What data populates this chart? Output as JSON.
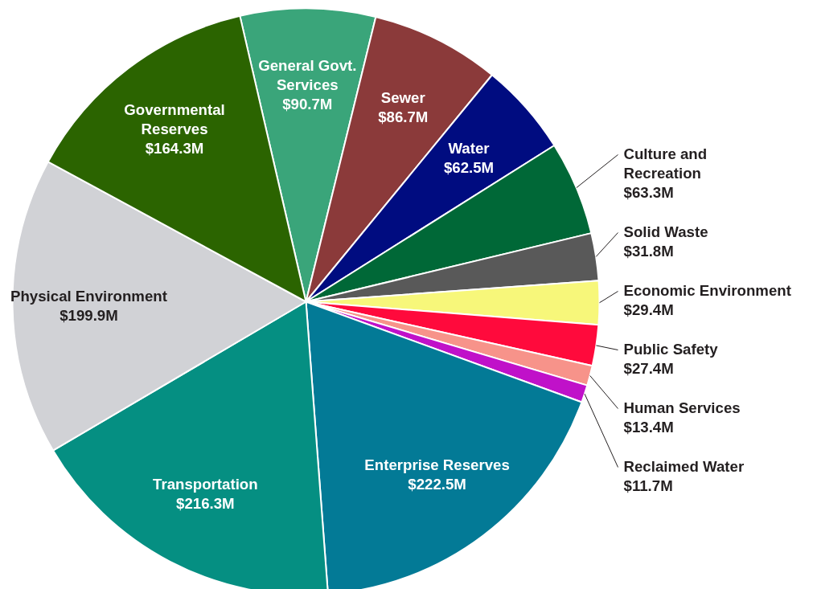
{
  "chart_data": {
    "type": "pie",
    "categories": [
      "General Govt.\nServices",
      "Sewer",
      "Water",
      "Culture and\nRecreation",
      "Solid Waste",
      "Economic Environment",
      "Public Safety",
      "Human Services",
      "Reclaimed Water",
      "Enterprise Reserves",
      "Transportation",
      "Physical Environment",
      "Governmental\nReserves"
    ],
    "values": [
      90.7,
      86.7,
      62.5,
      63.3,
      31.8,
      29.4,
      27.4,
      13.4,
      11.7,
      222.5,
      216.3,
      199.9,
      164.3
    ],
    "value_labels": [
      "$90.7M",
      "$86.7M",
      "$62.5M",
      "$63.3M",
      "$31.8M",
      "$29.4M",
      "$27.4M",
      "$13.4M",
      "$11.7M",
      "$222.5M",
      "$216.3M",
      "$199.9M",
      "$164.3M"
    ],
    "colors": [
      "#3aa57a",
      "#8b3a3a",
      "#000c80",
      "#006837",
      "#595959",
      "#f7f77a",
      "#ff0a3c",
      "#f7938a",
      "#c011c9",
      "#037a96",
      "#058f82",
      "#d1d2d6",
      "#2b6400"
    ]
  }
}
